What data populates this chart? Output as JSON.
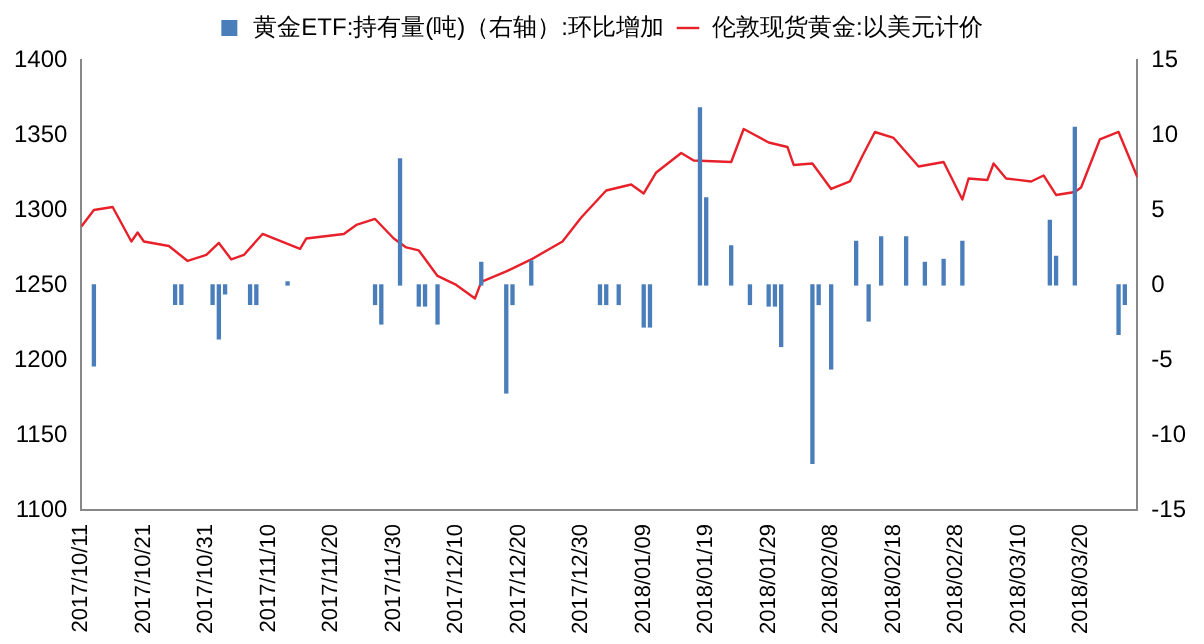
{
  "chart_data": {
    "type": "bar",
    "xlim": [
      "2017-10-11",
      "2018-03-29"
    ],
    "xticks": [
      {
        "value": "2017-10-11",
        "label": "2017/10/11"
      },
      {
        "value": "2017-10-21",
        "label": "2017/10/21"
      },
      {
        "value": "2017-10-31",
        "label": "2017/10/31"
      },
      {
        "value": "2017-11-10",
        "label": "2017/11/10"
      },
      {
        "value": "2017-11-20",
        "label": "2017/11/20"
      },
      {
        "value": "2017-11-30",
        "label": "2017/11/30"
      },
      {
        "value": "2017-12-10",
        "label": "2017/12/10"
      },
      {
        "value": "2017-12-20",
        "label": "2017/12/20"
      },
      {
        "value": "2017-12-30",
        "label": "2017/12/30"
      },
      {
        "value": "2018-01-09",
        "label": "2018/01/09"
      },
      {
        "value": "2018-01-19",
        "label": "2018/01/19"
      },
      {
        "value": "2018-01-29",
        "label": "2018/01/29"
      },
      {
        "value": "2018-02-08",
        "label": "2018/02/08"
      },
      {
        "value": "2018-02-18",
        "label": "2018/02/18"
      },
      {
        "value": "2018-02-28",
        "label": "2018/02/28"
      },
      {
        "value": "2018-03-10",
        "label": "2018/03/10"
      },
      {
        "value": "2018-03-20",
        "label": "2018/03/20"
      }
    ],
    "ylim": [
      1100,
      1400
    ],
    "yticks": [
      1100,
      1150,
      1200,
      1250,
      1300,
      1350,
      1400
    ],
    "y2lim": [
      -15,
      15
    ],
    "y2ticks": [
      -15,
      -10,
      -5,
      0,
      5,
      10,
      15
    ],
    "legend": "top",
    "grid": false,
    "series": [
      {
        "name": "黄金ETF:持有量(吨)（右轴）:环比增加",
        "axis": "y2",
        "color": "#4a7ebb",
        "x": [
          "2017-10-13",
          "2017-10-26",
          "2017-10-27",
          "2017-11-01",
          "2017-11-02",
          "2017-11-03",
          "2017-11-07",
          "2017-11-08",
          "2017-11-13",
          "2017-11-27",
          "2017-11-28",
          "2017-12-01",
          "2017-12-04",
          "2017-12-05",
          "2017-12-07",
          "2017-12-14",
          "2017-12-18",
          "2017-12-19",
          "2017-12-22",
          "2018-01-02",
          "2018-01-03",
          "2018-01-05",
          "2018-01-09",
          "2018-01-10",
          "2018-01-18",
          "2018-01-19",
          "2018-01-23",
          "2018-01-26",
          "2018-01-29",
          "2018-01-30",
          "2018-01-31",
          "2018-02-05",
          "2018-02-06",
          "2018-02-08",
          "2018-02-12",
          "2018-02-14",
          "2018-02-16",
          "2018-02-20",
          "2018-02-23",
          "2018-02-26",
          "2018-03-01",
          "2018-03-15",
          "2018-03-16",
          "2018-03-19",
          "2018-03-26",
          "2018-03-27"
        ],
        "values": [
          -5.4,
          -1.3,
          -1.3,
          -1.3,
          -3.6,
          -0.6,
          -1.3,
          -1.3,
          0.2,
          -1.3,
          -2.6,
          8.4,
          -1.4,
          -1.4,
          -2.6,
          1.5,
          -7.2,
          -1.3,
          1.6,
          -1.3,
          -1.3,
          -1.3,
          -2.8,
          -2.8,
          11.8,
          5.8,
          2.6,
          -1.3,
          -1.4,
          -1.4,
          -4.1,
          -11.9,
          -1.3,
          -5.6,
          2.9,
          -2.4,
          3.2,
          3.2,
          1.5,
          1.7,
          2.9,
          4.3,
          1.9,
          10.5,
          -3.3,
          -1.3
        ]
      },
      {
        "name": "伦敦现货黄金:以美元计价",
        "type": "line",
        "color": "#e8202a",
        "x": [
          "2017-10-11",
          "2017-10-13",
          "2017-10-16",
          "2017-10-19",
          "2017-10-20",
          "2017-10-21",
          "2017-10-25",
          "2017-10-28",
          "2017-10-31",
          "2017-11-02",
          "2017-11-04",
          "2017-11-06",
          "2017-11-09",
          "2017-11-15",
          "2017-11-16",
          "2017-11-22",
          "2017-11-24",
          "2017-11-27",
          "2017-11-30",
          "2017-12-02",
          "2017-12-04",
          "2017-12-07",
          "2017-12-10",
          "2017-12-13",
          "2017-12-14",
          "2017-12-18",
          "2017-12-22",
          "2017-12-27",
          "2017-12-30",
          "2018-01-03",
          "2018-01-07",
          "2018-01-09",
          "2018-01-11",
          "2018-01-15",
          "2018-01-17",
          "2018-01-23",
          "2018-01-25",
          "2018-01-29",
          "2018-02-01",
          "2018-02-02",
          "2018-02-05",
          "2018-02-08",
          "2018-02-11",
          "2018-02-13",
          "2018-02-15",
          "2018-02-18",
          "2018-02-22",
          "2018-02-26",
          "2018-03-01",
          "2018-03-02",
          "2018-03-05",
          "2018-03-06",
          "2018-03-08",
          "2018-03-12",
          "2018-03-14",
          "2018-03-16",
          "2018-03-19",
          "2018-03-20",
          "2018-03-23",
          "2018-03-26",
          "2018-03-29"
        ],
        "values": [
          1289,
          1300,
          1302,
          1279,
          1285,
          1279,
          1276,
          1266,
          1270,
          1278,
          1267,
          1270,
          1284,
          1274,
          1281,
          1284,
          1290,
          1294,
          1281,
          1275,
          1273,
          1256,
          1250,
          1241,
          1252,
          1259,
          1267,
          1279,
          1295,
          1313,
          1317,
          1311,
          1325,
          1338,
          1333,
          1332,
          1354,
          1345,
          1342,
          1330,
          1331,
          1314,
          1319,
          1336,
          1352,
          1348,
          1329,
          1332,
          1307,
          1321,
          1320,
          1331,
          1321,
          1319,
          1323,
          1310,
          1312,
          1315,
          1347,
          1352,
          1322
        ]
      }
    ]
  }
}
